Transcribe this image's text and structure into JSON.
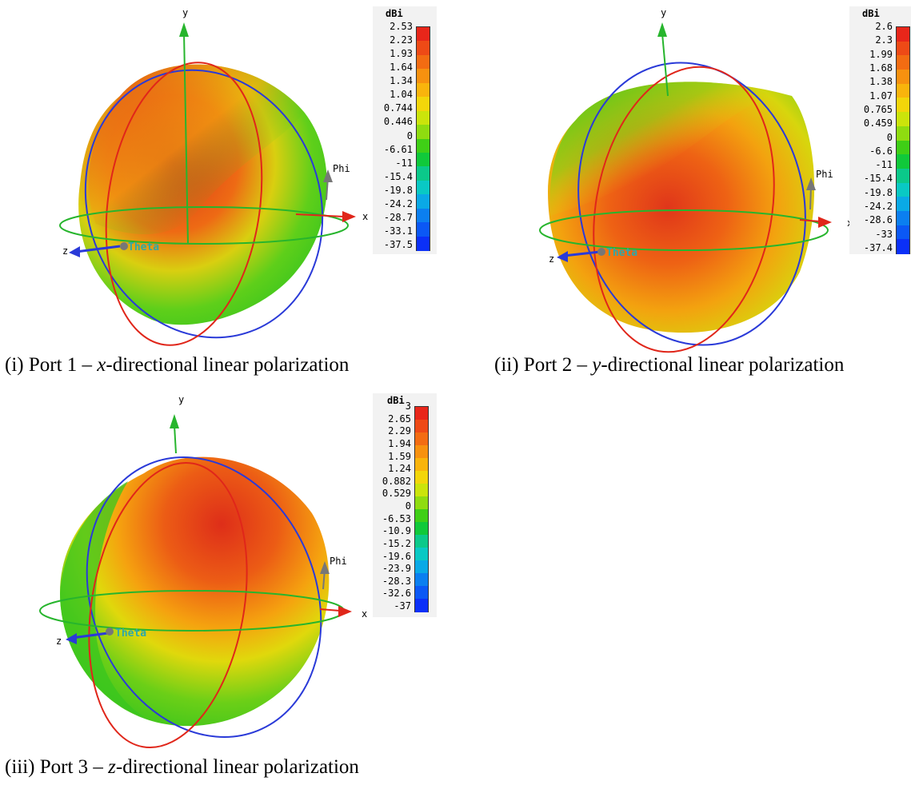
{
  "panels": [
    {
      "caption_prefix": "(i) Port 1 – ",
      "caption_axis": "x",
      "caption_suffix": "-directional linear polarization",
      "unit": "dBi",
      "ticks": [
        "2.53",
        "2.23",
        "1.93",
        "1.64",
        "1.34",
        "1.04",
        "0.744",
        "0.446",
        "0",
        "-6.61",
        "-11",
        "-15.4",
        "-19.8",
        "-24.2",
        "-28.7",
        "-33.1",
        "-37.5"
      ],
      "axis_labels": {
        "x": "x",
        "y": "y",
        "z": "z",
        "theta": "Theta",
        "phi": "Phi"
      }
    },
    {
      "caption_prefix": "(ii) Port 2 – ",
      "caption_axis": "y",
      "caption_suffix": "-directional linear polarization",
      "unit": "dBi",
      "ticks": [
        "2.6",
        "2.3",
        "1.99",
        "1.68",
        "1.38",
        "1.07",
        "0.765",
        "0.459",
        "0",
        "-6.6",
        "-11",
        "-15.4",
        "-19.8",
        "-24.2",
        "-28.6",
        "-33",
        "-37.4"
      ],
      "axis_labels": {
        "x": "x",
        "y": "y",
        "z": "z",
        "theta": "Theta",
        "phi": "Phi"
      }
    },
    {
      "caption_prefix": "(iii) Port 3 – ",
      "caption_axis": "z",
      "caption_suffix": "-directional linear polarization",
      "unit": "dBi",
      "ticks": [
        "3",
        "2.65",
        "2.29",
        "1.94",
        "1.59",
        "1.24",
        "0.882",
        "0.529",
        "0",
        "-6.53",
        "-10.9",
        "-15.2",
        "-19.6",
        "-23.9",
        "-28.3",
        "-32.6",
        "-37"
      ],
      "axis_labels": {
        "x": "x",
        "y": "y",
        "z": "z",
        "theta": "Theta",
        "phi": "Phi"
      }
    }
  ],
  "colormap": [
    "#e8261a",
    "#ee4a16",
    "#f36c12",
    "#f7910f",
    "#f9b40c",
    "#f3d60a",
    "#cbe40b",
    "#8fdc10",
    "#3fcf16",
    "#10c93a",
    "#0bc98a",
    "#09c9c4",
    "#0aa9e6",
    "#0b7ff0",
    "#0b58f5",
    "#0b30f8"
  ]
}
